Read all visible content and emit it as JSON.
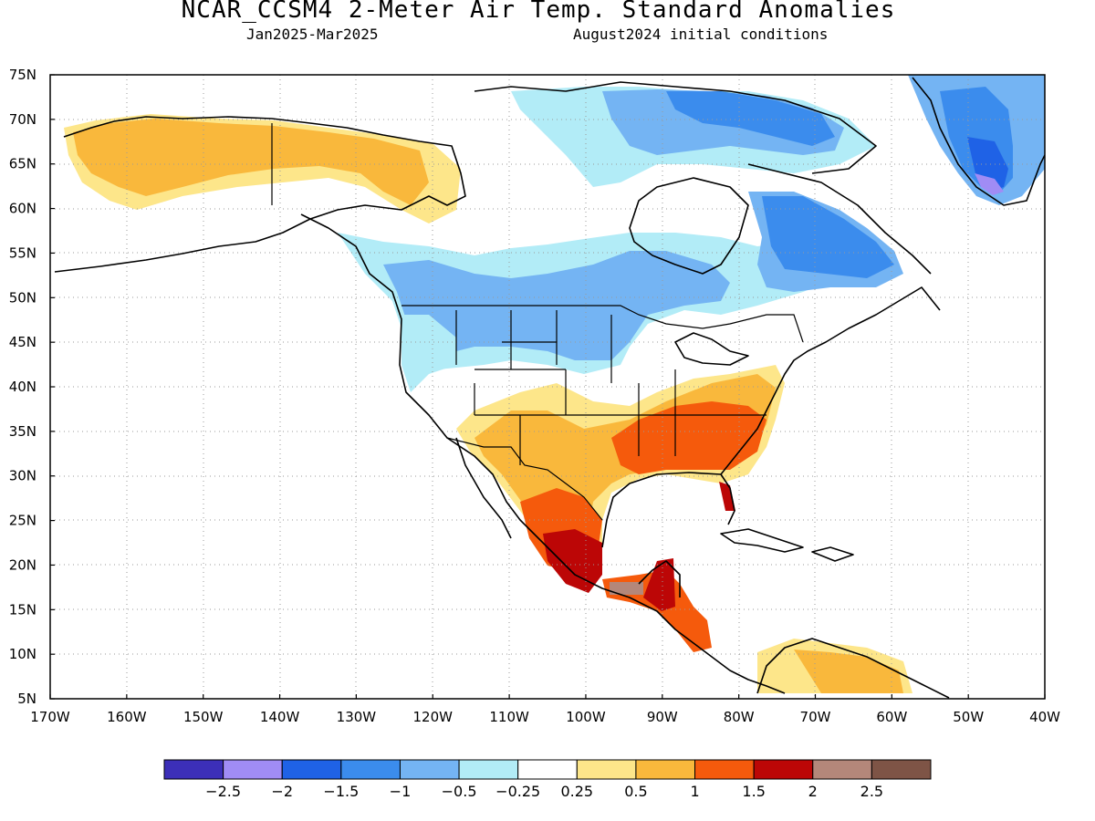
{
  "header": {
    "title": "NCAR_CCSM4 2-Meter Air Temp. Standard Anomalies",
    "period": "Jan2025-Mar2025",
    "init": "August2024 initial conditions"
  },
  "axes": {
    "lat_labels": [
      "75N",
      "70N",
      "65N",
      "60N",
      "55N",
      "50N",
      "45N",
      "40N",
      "35N",
      "30N",
      "25N",
      "20N",
      "15N",
      "10N",
      "5N"
    ],
    "lon_labels": [
      "170W",
      "160W",
      "150W",
      "140W",
      "130W",
      "120W",
      "110W",
      "100W",
      "90W",
      "80W",
      "70W",
      "60W",
      "50W",
      "40W"
    ]
  },
  "colorbar": {
    "colors": [
      "#3c2fb8",
      "#a08cf5",
      "#1f62e6",
      "#3b8ced",
      "#74b4f3",
      "#b2ecf7",
      "#ffffff",
      "#fde68a",
      "#f9b83c",
      "#f55a0c",
      "#bc0606",
      "#b4877a",
      "#7e5446"
    ],
    "labels": [
      "-2.5",
      "-2",
      "-1.5",
      "-1",
      "-0.5",
      "-0.25",
      "0.25",
      "0.5",
      "1",
      "1.5",
      "2",
      "2.5"
    ]
  }
}
